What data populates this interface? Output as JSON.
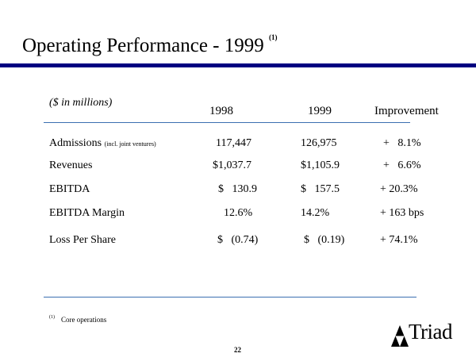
{
  "slide": {
    "title": "Operating Performance - 1999",
    "title_footnote_ref": "(1)",
    "units_label": "($ in millions)",
    "page_number": "22"
  },
  "table": {
    "columns": [
      "1998",
      "1999",
      "Improvement"
    ],
    "rows": [
      {
        "label": "Admissions",
        "label_note": "(incl. joint ventures)",
        "v1998": "117,447",
        "v1999": "126,975",
        "improvement": "+   8.1%"
      },
      {
        "label": "Revenues",
        "label_note": "",
        "v1998": "$1,037.7",
        "v1999": "$1,105.9",
        "improvement": "+   6.6%"
      },
      {
        "label": "EBITDA",
        "label_note": "",
        "v1998": "$   130.9",
        "v1999": "$   157.5",
        "improvement": "+ 20.3%"
      },
      {
        "label": "EBITDA Margin",
        "label_note": "",
        "v1998": "12.6%",
        "v1999": "14.2%",
        "improvement": "+ 163 bps"
      },
      {
        "label": "Loss Per Share",
        "label_note": "",
        "v1998": "$   (0.74)",
        "v1999": "$   (0.19)",
        "improvement": "+ 74.1%"
      }
    ]
  },
  "footnote": {
    "marker": "(1)",
    "text": "Core operations"
  },
  "logo": {
    "name": "Triad",
    "icon": "triforce-triangle-icon"
  },
  "colors": {
    "title_rule": "#000080",
    "table_rules": "#3b6fb0"
  }
}
